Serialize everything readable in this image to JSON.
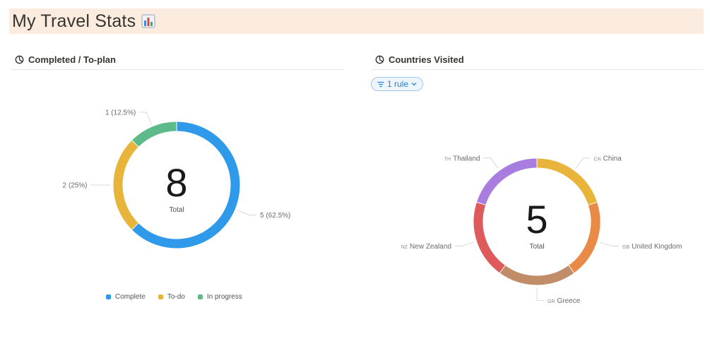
{
  "page": {
    "title": "My Travel Stats"
  },
  "panels": {
    "left": {
      "title": "Completed / To-plan"
    },
    "right": {
      "title": "Countries Visited",
      "filter_label": "1 rule"
    }
  },
  "chart_data": [
    {
      "type": "pie",
      "title": "Completed / To-plan",
      "center_value": "8",
      "center_label": "Total",
      "slices": [
        {
          "name": "Complete",
          "value": 5,
          "label": "5 (62.5%)",
          "color": "#2f9ae9"
        },
        {
          "name": "To-do",
          "value": 2,
          "label": "2 (25%)",
          "color": "#e8b43a"
        },
        {
          "name": "In progress",
          "value": 1,
          "label": "1 (12.5%)",
          "color": "#5dbb8b"
        }
      ],
      "legend": "bottom"
    },
    {
      "type": "pie",
      "title": "Countries Visited",
      "center_value": "5",
      "center_label": "Total",
      "slices": [
        {
          "name": "China",
          "code": "CN",
          "value": 1,
          "label": "China",
          "color": "#e8b43a"
        },
        {
          "name": "United Kingdom",
          "code": "GB",
          "value": 1,
          "label": "United Kingdom",
          "color": "#ea8a47"
        },
        {
          "name": "Greece",
          "code": "GR",
          "value": 1,
          "label": "Greece",
          "color": "#c08d68"
        },
        {
          "name": "New Zealand",
          "code": "NZ",
          "value": 1,
          "label": "New Zealand",
          "color": "#df5b5b"
        },
        {
          "name": "Thailand",
          "code": "TH",
          "value": 1,
          "label": "Thailand",
          "color": "#a97cdf"
        }
      ],
      "legend": "none"
    }
  ]
}
